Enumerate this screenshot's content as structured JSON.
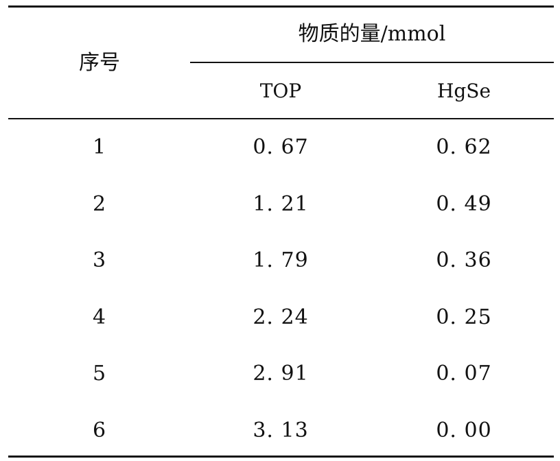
{
  "table": {
    "header": {
      "row_header": "序号",
      "group_header": "物质的量/mmol",
      "columns": [
        "TOP",
        "HgSe"
      ]
    },
    "rows": [
      {
        "index": "1",
        "top": "0. 67",
        "hgse": "0. 62"
      },
      {
        "index": "2",
        "top": "1. 21",
        "hgse": "0. 49"
      },
      {
        "index": "3",
        "top": "1. 79",
        "hgse": "0. 36"
      },
      {
        "index": "4",
        "top": "2. 24",
        "hgse": "0. 25"
      },
      {
        "index": "5",
        "top": "2. 91",
        "hgse": "0. 07"
      },
      {
        "index": "6",
        "top": "3. 13",
        "hgse": "0. 00"
      }
    ]
  }
}
